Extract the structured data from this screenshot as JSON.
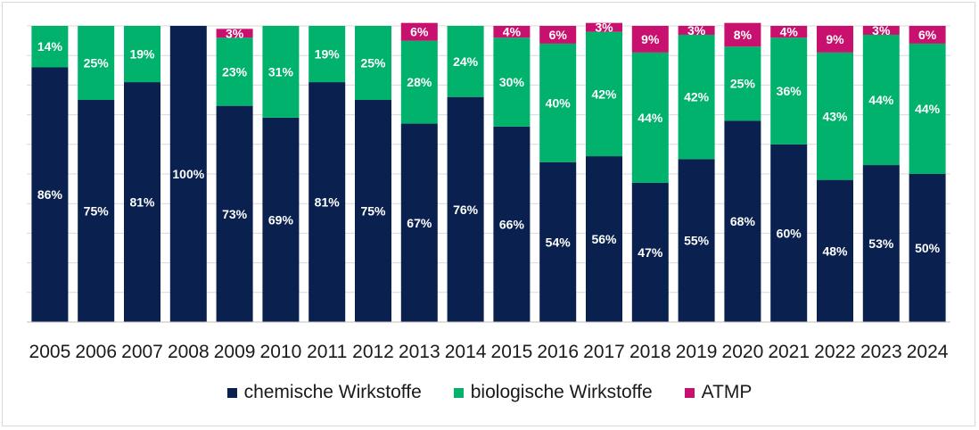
{
  "chart_data": {
    "type": "bar",
    "stacked": true,
    "percent": true,
    "categories": [
      "2005",
      "2006",
      "2007",
      "2008",
      "2009",
      "2010",
      "2011",
      "2012",
      "2013",
      "2014",
      "2015",
      "2016",
      "2017",
      "2018",
      "2019",
      "2020",
      "2021",
      "2022",
      "2023",
      "2024"
    ],
    "series": [
      {
        "name": "chemische Wirkstoffe",
        "color": "#0a2150",
        "values": [
          86,
          75,
          81,
          100,
          73,
          69,
          81,
          75,
          67,
          76,
          66,
          54,
          56,
          47,
          55,
          68,
          60,
          48,
          53,
          50
        ]
      },
      {
        "name": "biologische Wirkstoffe",
        "color": "#00b26b",
        "values": [
          14,
          25,
          19,
          0,
          23,
          31,
          19,
          25,
          28,
          24,
          30,
          40,
          42,
          44,
          42,
          25,
          36,
          43,
          44,
          44
        ]
      },
      {
        "name": "ATMP",
        "color": "#c8106e",
        "values": [
          0,
          0,
          0,
          0,
          3,
          0,
          0,
          0,
          6,
          0,
          4,
          6,
          3,
          9,
          3,
          8,
          4,
          9,
          3,
          6
        ]
      }
    ],
    "ylim": [
      0,
      100
    ],
    "grid": true,
    "legend": "bottom",
    "label_color": "#ffffff",
    "axis_label_color": "#1a1a1a"
  }
}
